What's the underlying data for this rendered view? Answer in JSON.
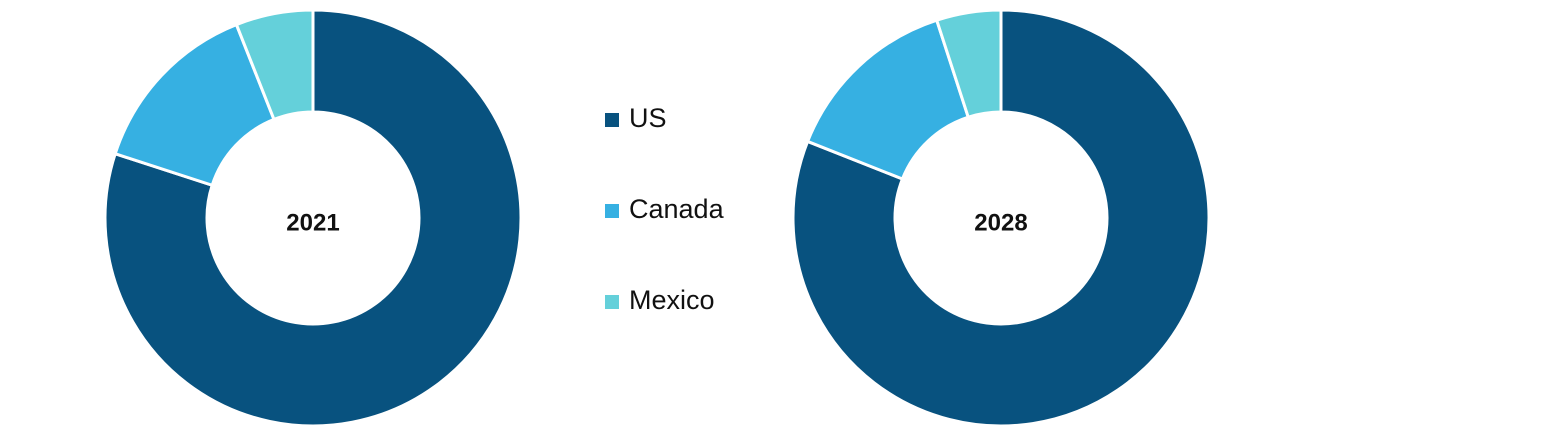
{
  "chart_data": [
    {
      "type": "donut",
      "center_label": "2021",
      "categories": [
        "US",
        "Canada",
        "Mexico"
      ],
      "values": [
        80,
        14,
        6
      ],
      "colors": [
        "#08527f",
        "#36b0e2",
        "#64d0da"
      ]
    },
    {
      "type": "donut",
      "center_label": "2028",
      "categories": [
        "US",
        "Canada",
        "Mexico"
      ],
      "values": [
        81,
        14,
        5
      ],
      "colors": [
        "#08527f",
        "#36b0e2",
        "#64d0da"
      ]
    }
  ]
}
